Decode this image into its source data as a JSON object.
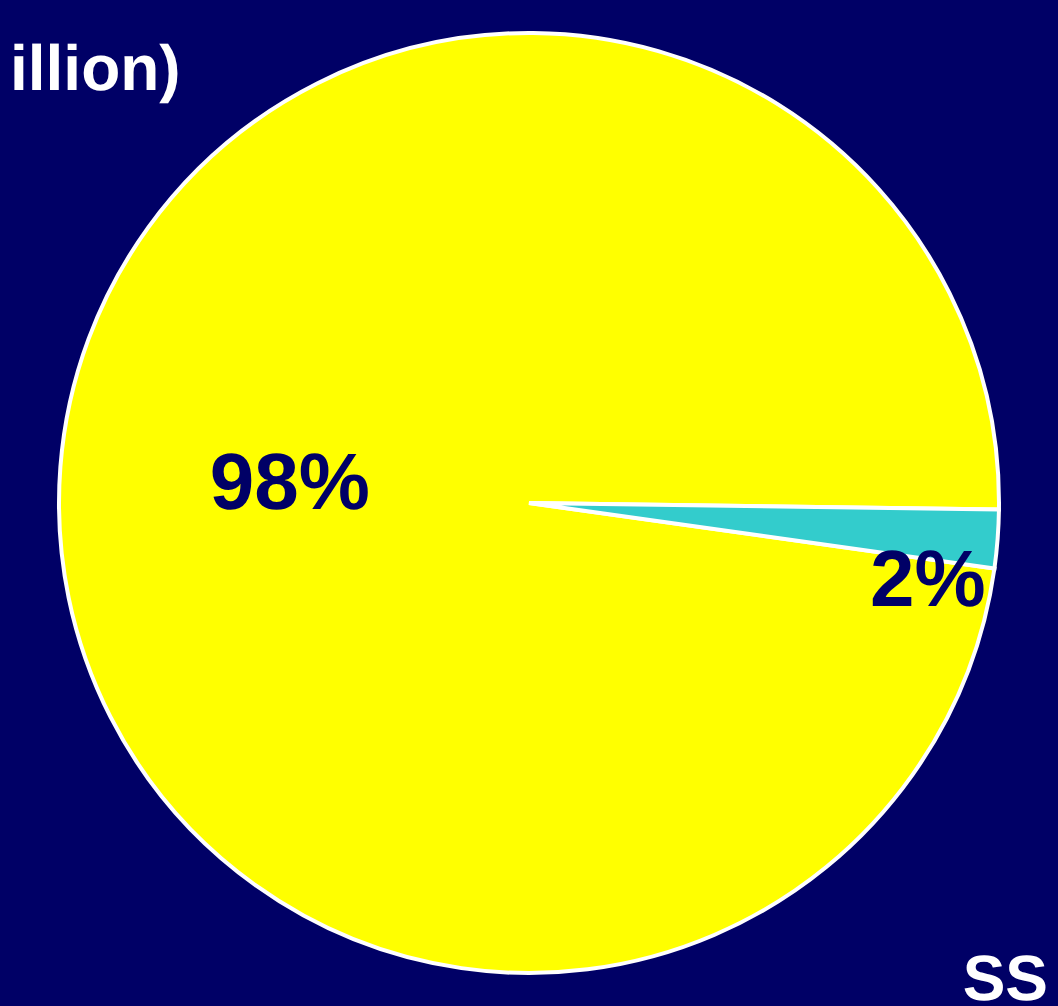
{
  "chart_data": {
    "type": "pie",
    "categories": [
      null,
      null
    ],
    "values": [
      98,
      2
    ],
    "colors": [
      "#ffff00",
      "#33cccc"
    ],
    "value_labels": [
      "98%",
      "2%"
    ],
    "annotations": [
      "illion)",
      "SS"
    ]
  }
}
